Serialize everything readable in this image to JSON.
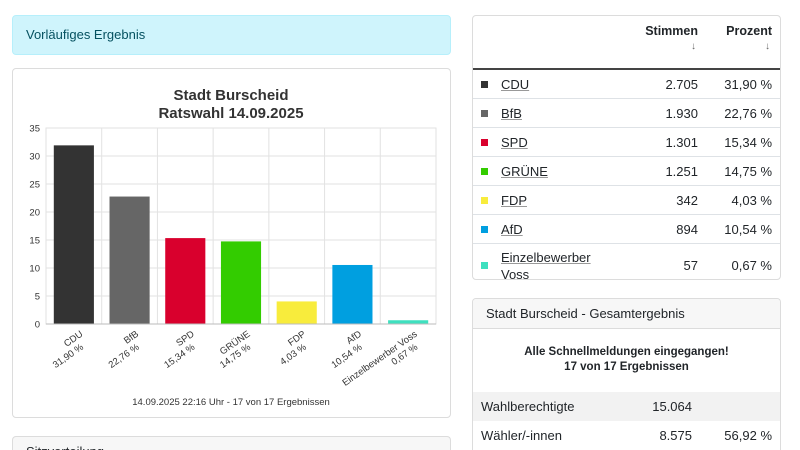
{
  "banner": "Vorläufiges Ergebnis",
  "chart_data": {
    "type": "bar",
    "title": "Stadt Burscheid",
    "subtitle": "Ratswahl 14.09.2025",
    "categories": [
      "CDU",
      "BfB",
      "SPD",
      "GRÜNE",
      "FDP",
      "AfD",
      "Einzelbewerber Voss"
    ],
    "values": [
      31.9,
      22.76,
      15.34,
      14.75,
      4.03,
      10.54,
      0.67
    ],
    "value_labels": [
      "31,90 %",
      "22,76 %",
      "15,34 %",
      "14,75 %",
      "4,03 %",
      "10,54 %",
      "0,67 %"
    ],
    "colors": [
      "#333333",
      "#666666",
      "#d9002d",
      "#33cc00",
      "#f8ec3c",
      "#009fe0",
      "#3ee0bf"
    ],
    "ylim": [
      0,
      35
    ],
    "yticks": [
      0,
      5,
      10,
      15,
      20,
      25,
      30,
      35
    ],
    "grid": true,
    "footer": "14.09.2025 22:16 Uhr - 17 von 17 Ergebnissen"
  },
  "results": {
    "headers": [
      "Stimmen",
      "Prozent"
    ],
    "rows": [
      {
        "party": "CDU",
        "votes": "2.705",
        "percent": "31,90 %"
      },
      {
        "party": "BfB",
        "votes": "1.930",
        "percent": "22,76 %"
      },
      {
        "party": "SPD",
        "votes": "1.301",
        "percent": "15,34 %"
      },
      {
        "party": "GRÜNE",
        "votes": "1.251",
        "percent": "14,75 %"
      },
      {
        "party": "FDP",
        "votes": "342",
        "percent": "4,03 %"
      },
      {
        "party": "AfD",
        "votes": "894",
        "percent": "10,54 %"
      },
      {
        "party": "Einzelbewerber Voss",
        "votes": "57",
        "percent": "0,67 %"
      }
    ]
  },
  "summary": {
    "title": "Stadt Burscheid - Gesamtergebnis",
    "notice": [
      "Alle Schnellmeldungen eingegangen!",
      "17 von 17 Ergebnissen"
    ],
    "rows": [
      [
        "Wahlberechtigte",
        "15.064"
      ],
      [
        "Wähler/-innen",
        "8.575",
        "56,92 %"
      ]
    ]
  },
  "next_section": "Sitzverteilung"
}
